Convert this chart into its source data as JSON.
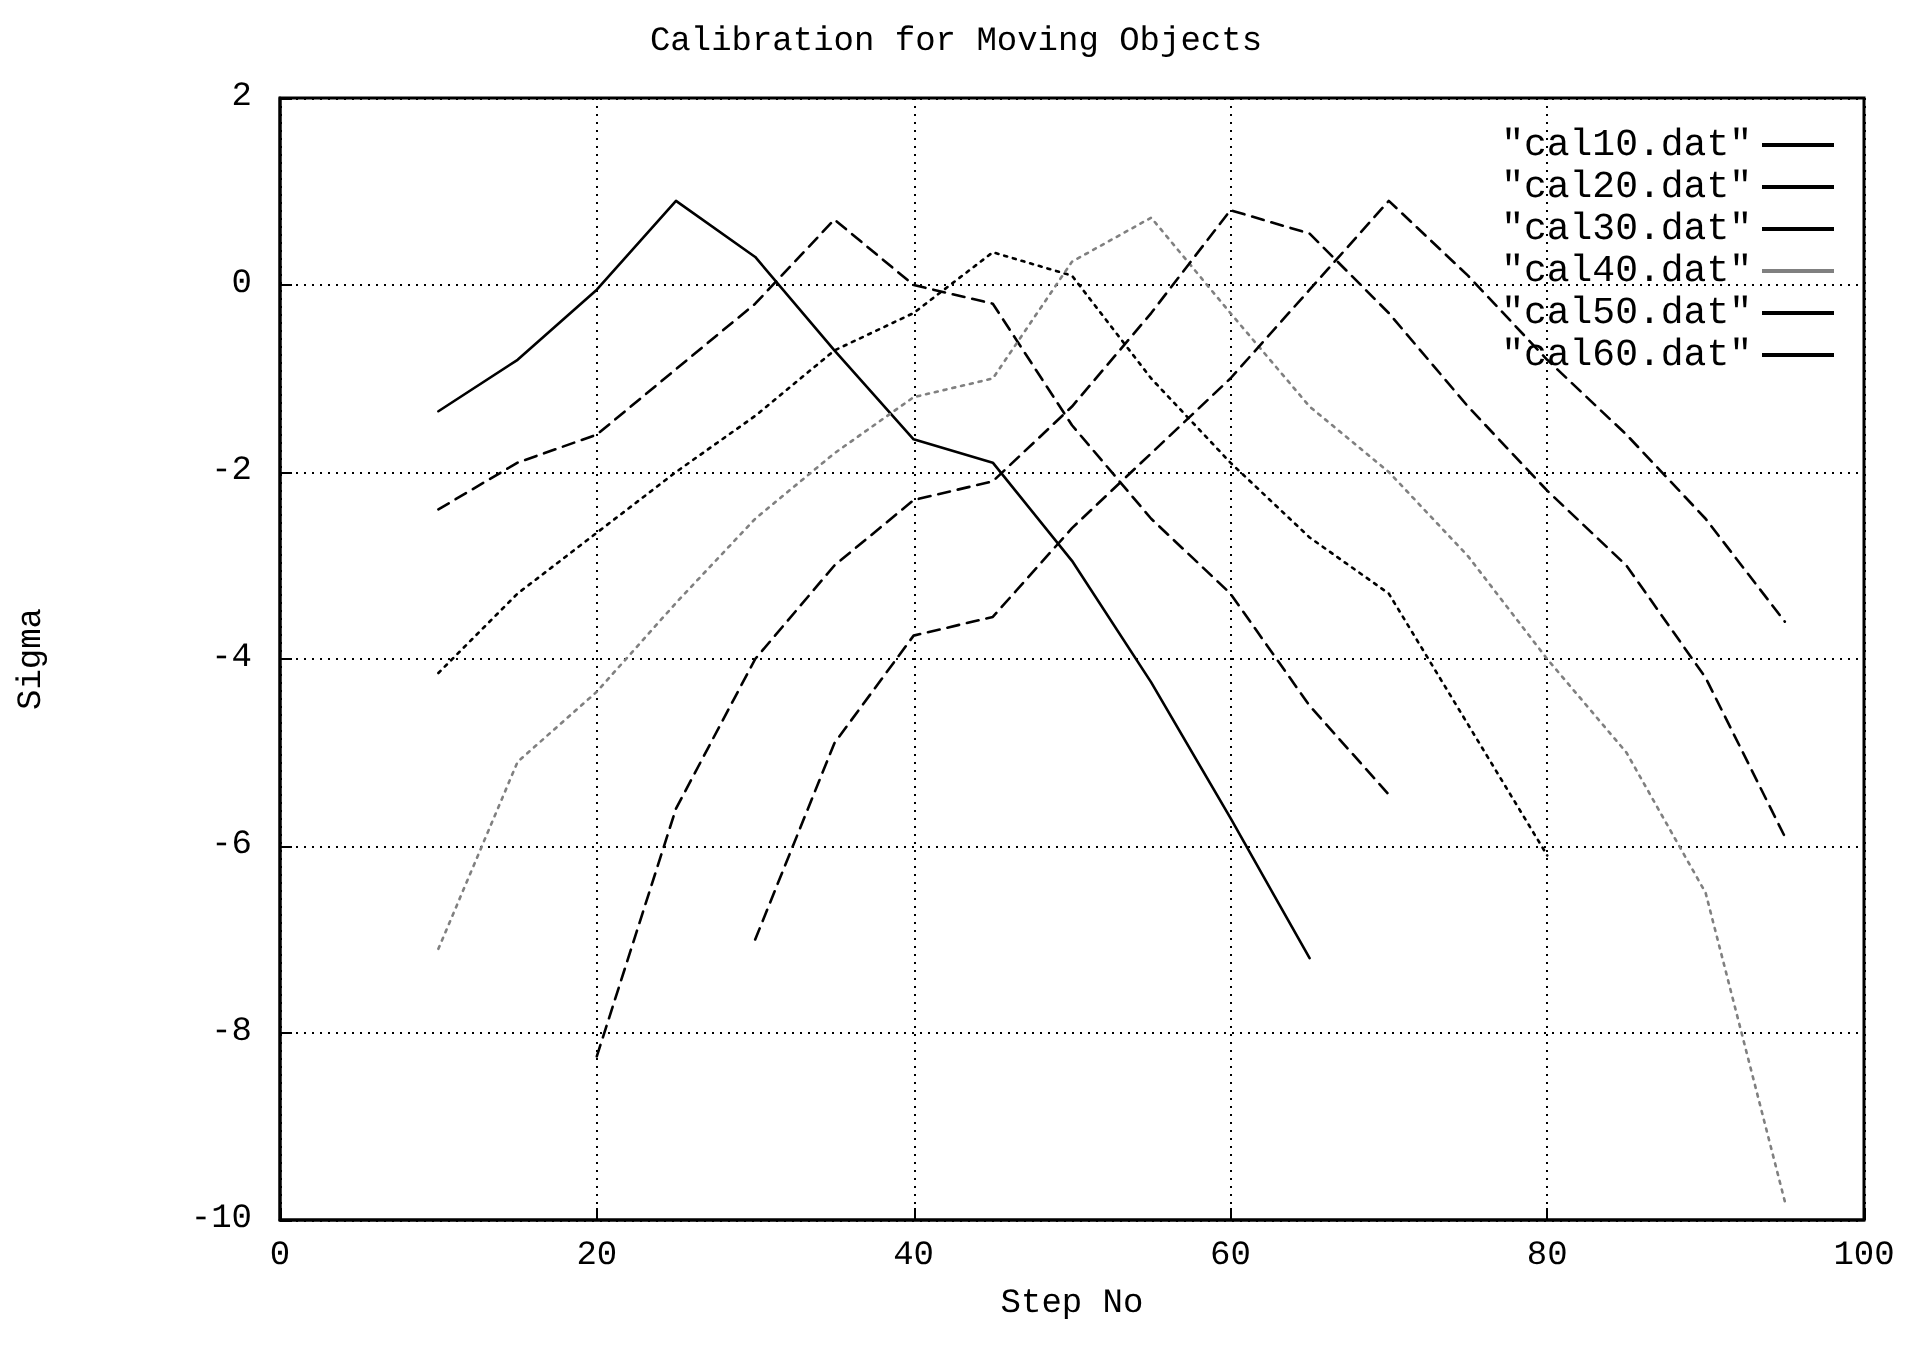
{
  "chart_data": {
    "type": "line",
    "title": "Calibration for Moving Objects",
    "xlabel": "Step No",
    "ylabel": "Sigma",
    "xlim": [
      0,
      100
    ],
    "xticks": [
      0,
      20,
      40,
      60,
      80,
      100
    ],
    "ylim": [
      -10,
      2
    ],
    "yticks": [
      -10,
      -8,
      -6,
      -4,
      -2,
      0,
      2
    ],
    "grid": true,
    "legend": "top right",
    "marker": "none",
    "series": [
      {
        "name": "\"cal10.dat\"",
        "color": "#000000",
        "line_style": "solid",
        "x": [
          10,
          15,
          20,
          25,
          30,
          35,
          40,
          45,
          50,
          55,
          60,
          65
        ],
        "values": [
          -1.35,
          -0.8,
          -0.05,
          0.9,
          0.3,
          -0.7,
          -1.65,
          -1.9,
          -2.95,
          -4.25,
          -5.7,
          -7.2
        ]
      },
      {
        "name": "\"cal20.dat\"",
        "color": "#000000",
        "line_style": "dashed",
        "x": [
          10,
          15,
          20,
          25,
          30,
          35,
          40,
          45,
          50,
          55,
          60,
          65,
          70
        ],
        "values": [
          -2.4,
          -1.9,
          -1.6,
          -0.9,
          -0.2,
          0.7,
          0.0,
          -0.2,
          -1.5,
          -2.5,
          -3.3,
          -4.5,
          -5.45
        ]
      },
      {
        "name": "\"cal30.dat\"",
        "color": "#000000",
        "line_style": "dotted",
        "x": [
          10,
          15,
          20,
          25,
          30,
          35,
          40,
          45,
          50,
          55,
          60,
          65,
          70,
          75,
          80
        ],
        "values": [
          -4.15,
          -3.3,
          -2.65,
          -2.0,
          -1.4,
          -0.7,
          -0.3,
          0.35,
          0.1,
          -1.0,
          -1.9,
          -2.7,
          -3.3,
          -4.7,
          -6.1
        ]
      },
      {
        "name": "\"cal40.dat\"",
        "color": "#808080",
        "line_style": "dotted",
        "x": [
          10,
          15,
          20,
          25,
          30,
          35,
          40,
          45,
          50,
          55,
          60,
          65,
          70,
          75,
          80,
          85,
          90,
          95
        ],
        "values": [
          -7.1,
          -5.1,
          -4.35,
          -3.4,
          -2.5,
          -1.8,
          -1.2,
          -1.0,
          0.25,
          0.72,
          -0.3,
          -1.3,
          -2.0,
          -2.9,
          -4.0,
          -5.0,
          -6.5,
          -9.8
        ]
      },
      {
        "name": "\"cal50.dat\"",
        "color": "#000000",
        "line_style": "dashed",
        "x": [
          20,
          25,
          30,
          35,
          40,
          45,
          50,
          55,
          60,
          65,
          70,
          75,
          80,
          85,
          90,
          95
        ],
        "values": [
          -8.25,
          -5.6,
          -4.0,
          -3.0,
          -2.3,
          -2.1,
          -1.3,
          -0.3,
          0.8,
          0.55,
          -0.3,
          -1.3,
          -2.2,
          -3.0,
          -4.2,
          -5.9
        ]
      },
      {
        "name": "\"cal60.dat\"",
        "color": "#000000",
        "line_style": "dashed",
        "x": [
          30,
          35,
          40,
          45,
          50,
          55,
          60,
          65,
          70,
          75,
          80,
          85,
          90,
          95
        ],
        "values": [
          -7.0,
          -4.9,
          -3.75,
          -3.55,
          -2.6,
          -1.8,
          -1.0,
          -0.05,
          0.9,
          0.1,
          -0.8,
          -1.6,
          -2.5,
          -3.6
        ]
      }
    ]
  }
}
